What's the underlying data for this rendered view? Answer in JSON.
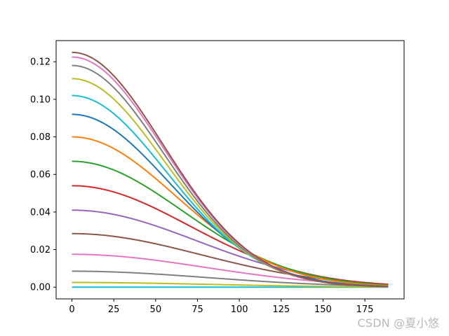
{
  "chart_data": {
    "type": "line",
    "title": "",
    "xlabel": "",
    "ylabel": "",
    "xlim": [
      -9.45,
      198.45
    ],
    "ylim": [
      -0.00625,
      0.13125
    ],
    "xticks": [
      0,
      25,
      50,
      75,
      100,
      125,
      150,
      175
    ],
    "xtick_labels": [
      "0",
      "25",
      "50",
      "75",
      "100",
      "125",
      "150",
      "175"
    ],
    "yticks": [
      0.0,
      0.02,
      0.04,
      0.06,
      0.08,
      0.1,
      0.12
    ],
    "ytick_labels": [
      "0.00",
      "0.02",
      "0.04",
      "0.06",
      "0.08",
      "0.10",
      "0.12"
    ],
    "grid": false,
    "legend": "none",
    "x": {
      "start": 0,
      "stop": 189,
      "step": 1
    },
    "series": [
      {
        "color": "#17becf",
        "peak": 0.0,
        "sigma": 80
      },
      {
        "color": "#bcbd22",
        "peak": 0.0025,
        "sigma": 80
      },
      {
        "color": "#7f7f7f",
        "peak": 0.0085,
        "sigma": 80
      },
      {
        "color": "#e377c2",
        "peak": 0.0175,
        "sigma": 79
      },
      {
        "color": "#8c564b",
        "peak": 0.0285,
        "sigma": 77
      },
      {
        "color": "#9467bd",
        "peak": 0.041,
        "sigma": 74
      },
      {
        "color": "#d62728",
        "peak": 0.054,
        "sigma": 70
      },
      {
        "color": "#2ca02c",
        "peak": 0.067,
        "sigma": 66
      },
      {
        "color": "#ff7f0e",
        "peak": 0.08,
        "sigma": 62
      },
      {
        "color": "#1f77b4",
        "peak": 0.092,
        "sigma": 58
      },
      {
        "color": "#17becf",
        "peak": 0.102,
        "sigma": 56
      },
      {
        "color": "#bcbd22",
        "peak": 0.111,
        "sigma": 55
      },
      {
        "color": "#7f7f7f",
        "peak": 0.118,
        "sigma": 54.5
      },
      {
        "color": "#e377c2",
        "peak": 0.1225,
        "sigma": 54.5
      },
      {
        "color": "#8c564b",
        "peak": 0.125,
        "sigma": 54.5
      }
    ]
  },
  "watermark": "CSDN @夏小悠"
}
